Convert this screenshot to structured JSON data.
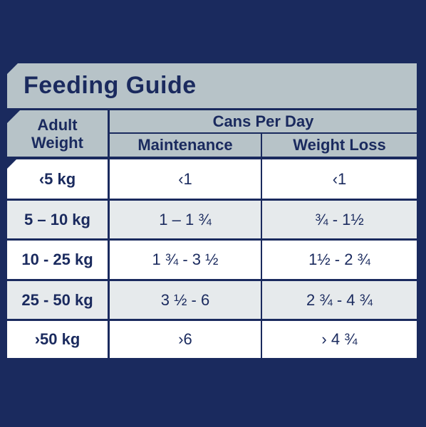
{
  "guide": {
    "title": "Feeding Guide",
    "headers": {
      "weight_line1": "Adult",
      "weight_line2": "Weight",
      "group": "Cans Per Day",
      "maintenance": "Maintenance",
      "weight_loss": "Weight Loss"
    },
    "rows": [
      {
        "weight": "‹5 kg",
        "maintenance": "‹1",
        "weight_loss": "‹1"
      },
      {
        "weight": "5 – 10 kg",
        "maintenance": "1 – 1 ¾",
        "weight_loss": "¾ - 1½"
      },
      {
        "weight": "10 - 25 kg",
        "maintenance": "1 ¾ - 3 ½",
        "weight_loss": "1½ - 2 ¾"
      },
      {
        "weight": "25 - 50 kg",
        "maintenance": "3 ½ - 6",
        "weight_loss": "2 ¾ - 4 ¾"
      },
      {
        "weight": "›50 kg",
        "maintenance": "›6",
        "weight_loss": "› 4 ¾"
      }
    ]
  },
  "colors": {
    "background": "#1a2a5e",
    "header": "#b7c3c8",
    "row_white": "#ffffff",
    "row_grey": "#e6eaec",
    "text": "#1a2a5e"
  }
}
